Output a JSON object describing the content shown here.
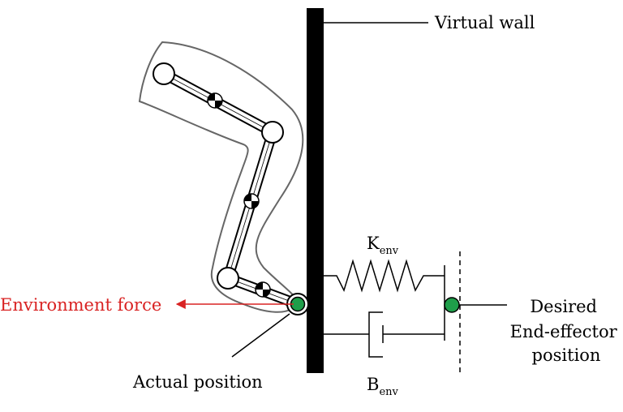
{
  "labels": {
    "virtual_wall": "Virtual wall",
    "environment_force": "Environment force",
    "actual_position": "Actual position",
    "k_main": "K",
    "k_sub": "env",
    "b_main": "B",
    "b_sub": "env",
    "desired_line1": "Desired",
    "desired_line2": "End-effector",
    "desired_line3": "position"
  },
  "colors": {
    "wall": "#000000",
    "force_arrow": "#d92323",
    "marker": "#1f9e4a",
    "outline": "#666666"
  }
}
